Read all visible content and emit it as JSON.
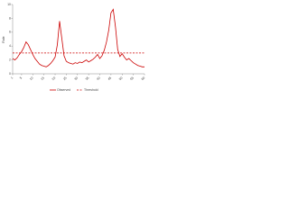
{
  "chart_data": {
    "type": "line",
    "y_label": "Rate",
    "x": [
      1,
      2,
      3,
      4,
      5,
      6,
      7,
      8,
      9,
      10,
      11,
      12,
      13,
      14,
      15,
      16,
      17,
      18,
      19,
      20,
      21,
      22,
      23,
      24,
      25,
      26,
      27,
      28,
      29,
      30,
      31,
      32,
      33,
      34,
      35,
      36,
      37,
      38,
      39,
      40,
      41,
      42,
      43,
      44,
      45,
      46,
      47,
      48,
      49,
      50,
      51,
      52,
      53,
      54,
      55,
      56,
      57,
      58,
      59,
      60
    ],
    "series": [
      {
        "name": "Observed",
        "color": "#cc0000",
        "values": [
          2.2,
          2.0,
          2.3,
          2.8,
          3.2,
          3.8,
          4.6,
          4.2,
          3.5,
          2.8,
          2.2,
          1.8,
          1.4,
          1.2,
          1.1,
          1.0,
          1.2,
          1.5,
          1.9,
          2.4,
          4.2,
          7.6,
          5.1,
          2.6,
          1.8,
          1.6,
          1.5,
          1.4,
          1.6,
          1.5,
          1.7,
          1.6,
          1.8,
          2.0,
          1.7,
          1.9,
          2.1,
          2.4,
          2.8,
          2.2,
          2.6,
          3.4,
          4.6,
          6.3,
          8.8,
          9.3,
          6.8,
          3.5,
          2.5,
          2.9,
          2.4,
          2.0,
          2.2,
          1.9,
          1.6,
          1.4,
          1.2,
          1.1,
          1.0,
          1.0
        ]
      }
    ],
    "threshold": {
      "name": "Threshold",
      "value": 3,
      "color": "#cc0000"
    },
    "xlim": [
      1,
      60
    ],
    "xticks": [
      1,
      5,
      10,
      15,
      20,
      25,
      30,
      35,
      40,
      45,
      50,
      55,
      60
    ],
    "ylim": [
      0,
      10
    ],
    "yticks": [
      0,
      2,
      4,
      6,
      8,
      10
    ]
  }
}
